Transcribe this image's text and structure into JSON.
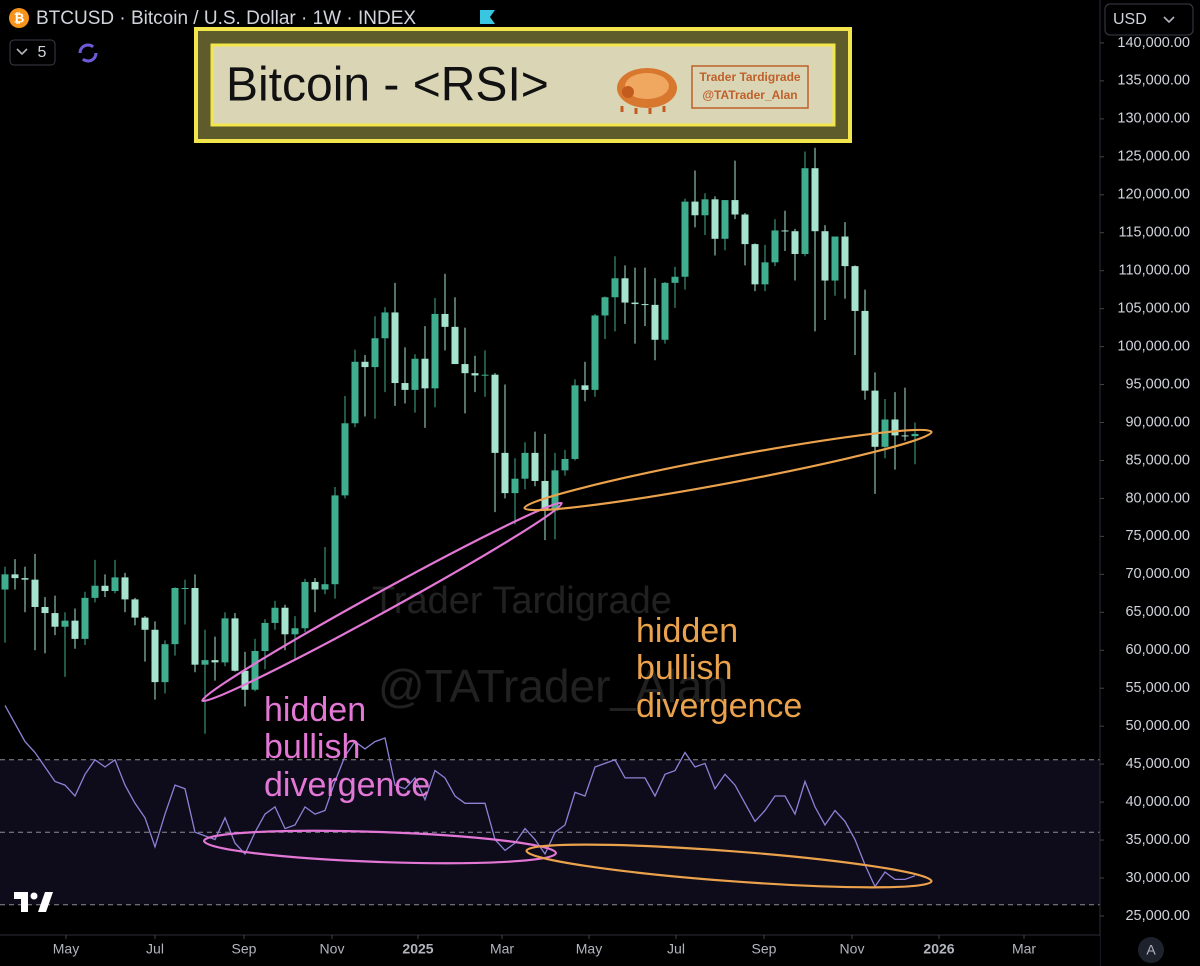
{
  "header": {
    "symbol": "BTCUSD · Bitcoin / U.S. Dollar · 1W · INDEX",
    "count": "5",
    "currency": "USD",
    "axis_button": "A"
  },
  "banner": {
    "title": "Bitcoin - <RSI>",
    "badge_name": "Trader Tardigrade",
    "badge_handle": "@TATrader_Alan"
  },
  "watermark": {
    "name": "Trader Tardigrade",
    "handle": "@TATrader_Alan"
  },
  "annotations": [
    {
      "lines": [
        "hidden",
        "bullish",
        "divergence"
      ],
      "color": "#e377d6"
    },
    {
      "lines": [
        "hidden",
        "bullish",
        "divergence"
      ],
      "color": "#eba24c"
    }
  ],
  "chart_data": [
    {
      "type": "candlestick",
      "categories": [
        null,
        null,
        null,
        null,
        null,
        null,
        null,
        null,
        null,
        null,
        null,
        null,
        null,
        null,
        null,
        null,
        null,
        null,
        null,
        null,
        null,
        null,
        null,
        null,
        null,
        null,
        null,
        null,
        null,
        null,
        null,
        null,
        null,
        null,
        null,
        null,
        null,
        null,
        null,
        null,
        null,
        null,
        null,
        null,
        null,
        null,
        null,
        null,
        null,
        null,
        null,
        null,
        null,
        null,
        null,
        null,
        null,
        null,
        null,
        null,
        null,
        null,
        null,
        null,
        null,
        null,
        null,
        null,
        null,
        null,
        null,
        null,
        null,
        null,
        null,
        null,
        null,
        null,
        null,
        null,
        null,
        null,
        null,
        null,
        null,
        null,
        null,
        null,
        null,
        null,
        null,
        null
      ],
      "open": [
        68000,
        70000,
        69500,
        69300,
        65700,
        64900,
        63100,
        63900,
        61500,
        66900,
        68500,
        67800,
        69600,
        66700,
        64300,
        62700,
        55800,
        60800,
        68200,
        68200,
        58100,
        58700,
        58400,
        64200,
        57300,
        54800,
        59900,
        63600,
        65600,
        62100,
        62900,
        69000,
        68000,
        68700,
        80400,
        89900,
        98000,
        97300,
        101100,
        104500,
        95200,
        94300,
        98400,
        94500,
        104300,
        102600,
        97700,
        96500,
        96200,
        96300,
        86000,
        80700,
        82600,
        86000,
        82300,
        78400,
        83700,
        85200,
        94900,
        94300,
        104100,
        106500,
        109000,
        105800,
        105600,
        105500,
        100900,
        108400,
        109200,
        119100,
        117300,
        119400,
        114200,
        119300,
        117400,
        113500,
        108200,
        111100,
        115300,
        115200,
        112200,
        123500,
        115200,
        108700,
        114500,
        110600,
        104700,
        94200,
        86800,
        90400,
        88300,
        88200
      ],
      "high": [
        71000,
        72000,
        71000,
        72700,
        67000,
        67200,
        65000,
        65500,
        67700,
        71900,
        70000,
        71900,
        70200,
        66900,
        64500,
        63800,
        61300,
        68300,
        69300,
        70000,
        62700,
        61800,
        65000,
        64900,
        59800,
        61500,
        64100,
        66500,
        66000,
        64500,
        69400,
        69500,
        73600,
        81500,
        93500,
        99600,
        98900,
        104000,
        105200,
        108400,
        99900,
        99000,
        102700,
        106400,
        109600,
        106500,
        102500,
        98800,
        99500,
        96500,
        95000,
        85300,
        87400,
        88800,
        88500,
        86000,
        86400,
        95700,
        98000,
        104300,
        106600,
        111900,
        110700,
        110400,
        110400,
        109000,
        108500,
        110500,
        119500,
        123200,
        120200,
        119800,
        119300,
        124500,
        117600,
        113600,
        113400,
        116800,
        117900,
        115500,
        125700,
        126200,
        116000,
        114000,
        116400,
        110700,
        107500,
        96600,
        93100,
        94000,
        94600,
        90000
      ],
      "low": [
        61000,
        68000,
        65000,
        60000,
        59600,
        62000,
        56500,
        60200,
        60700,
        66300,
        67000,
        67500,
        65000,
        63300,
        58500,
        53500,
        54300,
        59300,
        63400,
        57100,
        49000,
        56000,
        57900,
        57200,
        52600,
        54600,
        57500,
        62700,
        60000,
        58900,
        62400,
        65000,
        67400,
        66800,
        80000,
        89400,
        90800,
        90500,
        94000,
        92200,
        92500,
        91300,
        89300,
        92000,
        99500,
        97800,
        91200,
        94000,
        93400,
        78200,
        80000,
        76600,
        81200,
        81600,
        74500,
        74600,
        83000,
        85000,
        92800,
        93400,
        101000,
        102000,
        103000,
        100400,
        102700,
        98200,
        100400,
        105100,
        107500,
        115700,
        114700,
        112000,
        112700,
        116800,
        110700,
        107300,
        107300,
        110600,
        112600,
        108700,
        111900,
        102000,
        103500,
        106700,
        106300,
        98900,
        93000,
        80600,
        85300,
        83800,
        87600,
        84500
      ],
      "close": [
        70000,
        69500,
        69300,
        65700,
        64900,
        63100,
        63900,
        61500,
        66900,
        68500,
        67800,
        69600,
        66700,
        64300,
        62700,
        55800,
        60800,
        68200,
        68200,
        58100,
        58700,
        58400,
        64200,
        57300,
        54800,
        59900,
        63600,
        65600,
        62100,
        62900,
        69000,
        68000,
        68700,
        80400,
        89900,
        98000,
        97300,
        101100,
        104500,
        95200,
        94300,
        98400,
        94500,
        104300,
        102600,
        97700,
        96500,
        96200,
        96300,
        86000,
        80700,
        82600,
        86000,
        82300,
        78400,
        83700,
        85200,
        94900,
        94300,
        104100,
        106500,
        109000,
        105800,
        105600,
        105500,
        100900,
        108400,
        109200,
        119100,
        117300,
        119400,
        114200,
        119300,
        117400,
        113500,
        108200,
        111100,
        115300,
        115200,
        112200,
        123500,
        115200,
        108700,
        114500,
        110600,
        104700,
        94200,
        86800,
        90400,
        88300,
        88200,
        88500
      ],
      "up_color": "#3fae8f",
      "down_color": "#a6e3cf",
      "ylim": [
        19000,
        146000
      ],
      "yticks": [
        {
          "value": 25000,
          "label": "25,000.00"
        },
        {
          "value": 30000,
          "label": "30,000.00"
        },
        {
          "value": 35000,
          "label": "35,000.00"
        },
        {
          "value": 40000,
          "label": "40,000.00"
        },
        {
          "value": 45000,
          "label": "45,000.00"
        },
        {
          "value": 50000,
          "label": "50,000.00"
        },
        {
          "value": 55000,
          "label": "55,000.00"
        },
        {
          "value": 60000,
          "label": "60,000.00"
        },
        {
          "value": 65000,
          "label": "65,000.00"
        },
        {
          "value": 70000,
          "label": "70,000.00"
        },
        {
          "value": 75000,
          "label": "75,000.00"
        },
        {
          "value": 80000,
          "label": "80,000.00"
        },
        {
          "value": 85000,
          "label": "85,000.00"
        },
        {
          "value": 90000,
          "label": "90,000.00"
        },
        {
          "value": 95000,
          "label": "95,000.00"
        },
        {
          "value": 100000,
          "label": "100,000.00"
        },
        {
          "value": 105000,
          "label": "105,000.00"
        },
        {
          "value": 110000,
          "label": "110,000.00"
        },
        {
          "value": 115000,
          "label": "115,000.00"
        },
        {
          "value": 120000,
          "label": "120,000.00"
        },
        {
          "value": 125000,
          "label": "125,000.00"
        },
        {
          "value": 130000,
          "label": "130,000.00"
        },
        {
          "value": 135000,
          "label": "135,000.00"
        },
        {
          "value": 140000,
          "label": "140,000.00"
        }
      ],
      "xticks": [
        {
          "value": 6.1,
          "label": "May"
        },
        {
          "value": 15.0,
          "label": "Jul"
        },
        {
          "value": 23.9,
          "label": "Sep"
        },
        {
          "value": 32.7,
          "label": "Nov"
        },
        {
          "value": 41.3,
          "label": "2025"
        },
        {
          "value": 49.7,
          "label": "Mar"
        },
        {
          "value": 58.4,
          "label": "May"
        },
        {
          "value": 67.1,
          "label": "Jul"
        },
        {
          "value": 75.9,
          "label": "Sep"
        },
        {
          "value": 84.7,
          "label": "Nov"
        },
        {
          "value": 93.4,
          "label": "2026"
        },
        {
          "value": 101.9,
          "label": "Mar"
        }
      ]
    },
    {
      "type": "line",
      "values": [
        85,
        80,
        75,
        72,
        68,
        64,
        63,
        60,
        66,
        70,
        68,
        70,
        63,
        58,
        54,
        46,
        55,
        63,
        62,
        50,
        49,
        48,
        54,
        47,
        44,
        50,
        55,
        57,
        51,
        52,
        57,
        55,
        56,
        64,
        71,
        75,
        73,
        75,
        76,
        63,
        62,
        65,
        59,
        67,
        65,
        60,
        58,
        58,
        58,
        48,
        45,
        47,
        51,
        48,
        44,
        50,
        52,
        61,
        60,
        68,
        69,
        70,
        65,
        65,
        65,
        60,
        66,
        67,
        72,
        68,
        69,
        62,
        66,
        63,
        58,
        53,
        56,
        60,
        60,
        55,
        64,
        57,
        52,
        56,
        53,
        48,
        41,
        35,
        39,
        37,
        37,
        38
      ],
      "color": "#8d82d6",
      "ylim": [
        20,
        100
      ],
      "levels": [
        70,
        50,
        30
      ]
    }
  ]
}
